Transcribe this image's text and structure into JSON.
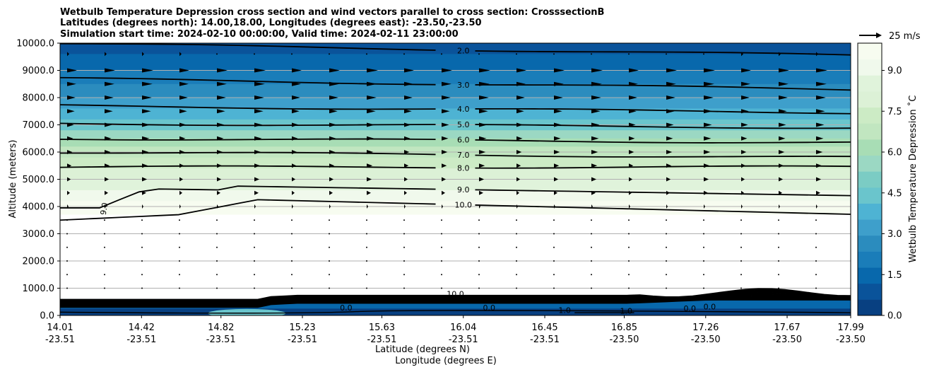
{
  "chart_data": {
    "type": "heatmap",
    "title_lines": [
      "Wetbulb Temperature Depression cross section and wind vectors parallel to cross section: CrosssectionB",
      "Latitudes (degrees north): 14.00,18.00, Longitudes (degrees east): -23.50,-23.50",
      "Simulation start time: 2024-02-10 00:00:00, Valid time: 2024-02-11 23:00:00"
    ],
    "ylabel": "Altitude (meters)",
    "xlabel_lat": "Latitude (degrees N)",
    "xlabel_lon": "Longitude (degrees E)",
    "ylim": [
      0,
      10000
    ],
    "yticks": [
      "0.0",
      "1000.0",
      "2000.0",
      "3000.0",
      "4000.0",
      "5000.0",
      "6000.0",
      "7000.0",
      "8000.0",
      "9000.0",
      "10000.0"
    ],
    "ytick_values": [
      0,
      1000,
      2000,
      3000,
      4000,
      5000,
      6000,
      7000,
      8000,
      9000,
      10000
    ],
    "xlim": [
      14.01,
      17.99
    ],
    "xticks": [
      {
        "lat": "14.01",
        "lon": "-23.51",
        "v": 14.01
      },
      {
        "lat": "14.42",
        "lon": "-23.51",
        "v": 14.42
      },
      {
        "lat": "14.82",
        "lon": "-23.51",
        "v": 14.82
      },
      {
        "lat": "15.23",
        "lon": "-23.51",
        "v": 15.23
      },
      {
        "lat": "15.63",
        "lon": "-23.51",
        "v": 15.63
      },
      {
        "lat": "16.04",
        "lon": "-23.51",
        "v": 16.04
      },
      {
        "lat": "16.45",
        "lon": "-23.51",
        "v": 16.45
      },
      {
        "lat": "16.85",
        "lon": "-23.50",
        "v": 16.85
      },
      {
        "lat": "17.26",
        "lon": "-23.50",
        "v": 17.26
      },
      {
        "lat": "17.67",
        "lon": "-23.50",
        "v": 17.67
      },
      {
        "lat": "17.99",
        "lon": "-23.50",
        "v": 17.99
      }
    ],
    "colorbar": {
      "label": "Wetbulb Temperature Depression ˚C",
      "ticks": [
        "0.0",
        "1.5",
        "3.0",
        "4.5",
        "6.0",
        "7.5",
        "9.0"
      ],
      "tick_values": [
        0,
        1.5,
        3,
        4.5,
        6,
        7.5,
        9
      ],
      "range": [
        0,
        10
      ],
      "colors": [
        "#084081",
        "#0a539a",
        "#0868ac",
        "#1a7db9",
        "#2b8cbe",
        "#3e9fcb",
        "#4eb3d3",
        "#6ac5cc",
        "#7bccc4",
        "#9bd8c3",
        "#a8ddb5",
        "#c1e6c0",
        "#ccebc5",
        "#dcf1d6",
        "#e0f3db",
        "#f0f9ec",
        "#f7fcf0"
      ]
    },
    "quiver_key": "25 m/s",
    "contour_levels_shown": [
      "2.0",
      "3.0",
      "4.0",
      "5.0",
      "6.0",
      "7.0",
      "8.0",
      "9.0",
      "10.0"
    ],
    "contours": [
      {
        "label": "2.0",
        "left": 9980,
        "right": 9550
      },
      {
        "label": "3.0",
        "left": 8700,
        "right": 8300
      },
      {
        "label": "4.0",
        "left": 7700,
        "right": 7450
      },
      {
        "label": "5.0",
        "left": 7050,
        "right": 6900
      },
      {
        "label": "6.0",
        "left": 6500,
        "right": 6350
      },
      {
        "label": "7.0",
        "left": 6000,
        "right": 5800
      },
      {
        "label": "8.0",
        "left": 5450,
        "right": 5450
      },
      {
        "label": "9.0",
        "left": 3950,
        "right": 4400
      },
      {
        "label": "10.0",
        "left": 3500,
        "right": 3250
      }
    ],
    "low_level_labels": [
      "10.0",
      "0.0",
      "0.0",
      "1.0",
      "1.0",
      "0.0",
      "0.0"
    ]
  }
}
